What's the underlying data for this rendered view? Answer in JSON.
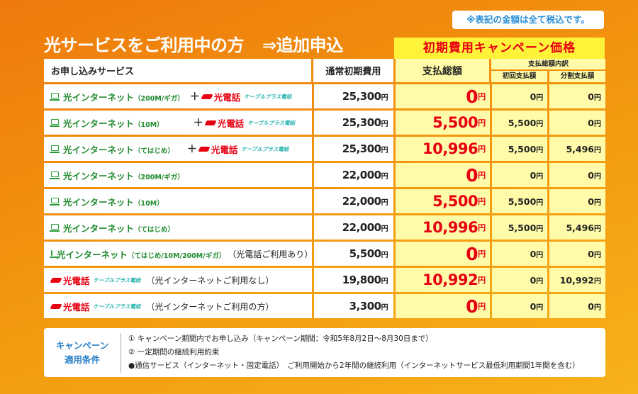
{
  "tax_note": "※表記の金額は全て税込です。",
  "title": "光サービスをご利用中の方",
  "title_sub": "⇒追加申込",
  "campaign_label": "初期費用キャンペーン価格",
  "headers": {
    "service": "お申し込みサービス",
    "normal": "通常初期費用",
    "total": "支払総額",
    "breakdown": "支払総額内訳",
    "first": "初回支払額",
    "installment": "分割支払額"
  },
  "yen": "円",
  "plus": "＋",
  "labels": {
    "net": "光インターネット",
    "tel": "光電話",
    "cable": "ケーブルプラス電話",
    "p200": "（200M/ギガ）",
    "p10": "（10M）",
    "phaji": "（てはじめ）",
    "pall": "（てはじめ/10M/200M/ギガ）",
    "with_tel": "（光電話ご利用あり）",
    "no_net": "（光インターネットご利用なし）",
    "net_user": "（光インターネットご利用の方）"
  },
  "rows": [
    {
      "normal": "25,300",
      "total": "0",
      "first": "0",
      "inst": "0"
    },
    {
      "normal": "25,300",
      "total": "5,500",
      "first": "5,500",
      "inst": "0"
    },
    {
      "normal": "25,300",
      "total": "10,996",
      "first": "5,500",
      "inst": "5,496"
    },
    {
      "normal": "22,000",
      "total": "0",
      "first": "0",
      "inst": "0"
    },
    {
      "normal": "22,000",
      "total": "5,500",
      "first": "5,500",
      "inst": "0"
    },
    {
      "normal": "22,000",
      "total": "10,996",
      "first": "5,500",
      "inst": "5,496"
    },
    {
      "normal": "5,500",
      "total": "0",
      "first": "0",
      "inst": "0"
    },
    {
      "normal": "19,800",
      "total": "10,992",
      "first": "0",
      "inst": "10,992"
    },
    {
      "normal": "3,300",
      "total": "0",
      "first": "0",
      "inst": "0"
    }
  ],
  "conditions": {
    "label_line1": "キャンペーン",
    "label_line2": "適用条件",
    "items": [
      "① キャンペーン期間内でお申し込み（キャンペーン期間：令和5年8月2日～8月30日まで）",
      "② 一定期間の継続利用約束",
      "●通信サービス（インターネット・固定電話）　ご利用開始から2年間の継続利用（インターネットサービス最低利用期間1年間を含む）"
    ]
  },
  "colors": {
    "accent_red": "#e60012",
    "net_green": "#1f8a2e",
    "highlight_yellow": "#fffba8",
    "campaign_yellow": "#fff33a",
    "condition_blue": "#2a7fc7",
    "bg_orange": "#f39a10"
  },
  "icons": [
    "pc-icon",
    "phone-wave-icon"
  ]
}
